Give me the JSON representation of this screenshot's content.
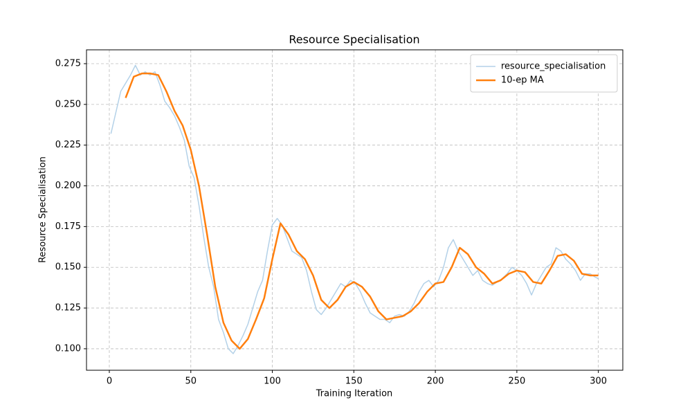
{
  "chart_data": {
    "type": "line",
    "title": "Resource Specialisation",
    "x_label": "Training Iteration",
    "y_label": "Resource Specialisation",
    "xlim": [
      -14,
      315
    ],
    "ylim": [
      0.0868,
      0.2835
    ],
    "xticks": [
      0,
      50,
      100,
      150,
      200,
      250,
      300
    ],
    "yticks": [
      {
        "value": 0.1,
        "label": "0.100"
      },
      {
        "value": 0.125,
        "label": "0.125"
      },
      {
        "value": 0.15,
        "label": "0.150"
      },
      {
        "value": 0.175,
        "label": "0.175"
      },
      {
        "value": 0.2,
        "label": "0.200"
      },
      {
        "value": 0.225,
        "label": "0.225"
      },
      {
        "value": 0.25,
        "label": "0.250"
      },
      {
        "value": 0.275,
        "label": "0.275"
      }
    ],
    "grid": true,
    "legend": "upper right",
    "series": [
      {
        "name": "resource_specialisation",
        "color": "#b3d1e8",
        "width": 1.5,
        "x": [
          1,
          4,
          7,
          10,
          13,
          16,
          19,
          22,
          25,
          28,
          31,
          34,
          37,
          40,
          43,
          46,
          49,
          52,
          55,
          58,
          61,
          64,
          67,
          70,
          73,
          76,
          79,
          82,
          85,
          88,
          91,
          94,
          97,
          100,
          103,
          106,
          109,
          112,
          115,
          118,
          121,
          124,
          127,
          130,
          133,
          136,
          139,
          142,
          145,
          148,
          151,
          154,
          157,
          160,
          163,
          166,
          169,
          172,
          175,
          178,
          181,
          184,
          187,
          190,
          193,
          196,
          199,
          202,
          205,
          208,
          211,
          214,
          217,
          220,
          223,
          226,
          229,
          232,
          235,
          238,
          241,
          244,
          247,
          250,
          253,
          256,
          259,
          262,
          265,
          268,
          271,
          274,
          277,
          280,
          283,
          286,
          289,
          292,
          295,
          298,
          300
        ],
        "values": [
          0.232,
          0.245,
          0.258,
          0.263,
          0.268,
          0.274,
          0.268,
          0.27,
          0.268,
          0.27,
          0.262,
          0.252,
          0.248,
          0.243,
          0.236,
          0.228,
          0.212,
          0.205,
          0.188,
          0.168,
          0.15,
          0.138,
          0.118,
          0.11,
          0.1,
          0.097,
          0.102,
          0.108,
          0.115,
          0.125,
          0.135,
          0.142,
          0.16,
          0.176,
          0.18,
          0.176,
          0.168,
          0.16,
          0.158,
          0.156,
          0.148,
          0.135,
          0.124,
          0.121,
          0.125,
          0.13,
          0.135,
          0.14,
          0.138,
          0.142,
          0.14,
          0.135,
          0.128,
          0.122,
          0.12,
          0.118,
          0.118,
          0.116,
          0.12,
          0.121,
          0.12,
          0.123,
          0.128,
          0.135,
          0.14,
          0.142,
          0.138,
          0.142,
          0.15,
          0.162,
          0.167,
          0.16,
          0.155,
          0.15,
          0.145,
          0.148,
          0.142,
          0.14,
          0.139,
          0.141,
          0.143,
          0.146,
          0.15,
          0.148,
          0.145,
          0.14,
          0.133,
          0.14,
          0.145,
          0.15,
          0.152,
          0.162,
          0.16,
          0.155,
          0.152,
          0.148,
          0.142,
          0.146,
          0.146,
          0.144,
          0.143
        ]
      },
      {
        "name": "10-ep MA",
        "color": "#ff7f0e",
        "width": 2.5,
        "x": [
          10,
          15,
          20,
          25,
          30,
          35,
          40,
          45,
          50,
          55,
          60,
          65,
          70,
          75,
          80,
          85,
          90,
          95,
          100,
          105,
          110,
          115,
          120,
          125,
          130,
          135,
          140,
          145,
          150,
          155,
          160,
          165,
          170,
          175,
          180,
          185,
          190,
          195,
          200,
          205,
          210,
          215,
          220,
          225,
          230,
          235,
          240,
          245,
          250,
          255,
          260,
          265,
          270,
          275,
          280,
          285,
          290,
          295,
          300
        ],
        "values": [
          0.254,
          0.267,
          0.269,
          0.269,
          0.268,
          0.258,
          0.246,
          0.237,
          0.222,
          0.2,
          0.17,
          0.138,
          0.116,
          0.105,
          0.1,
          0.106,
          0.118,
          0.131,
          0.155,
          0.177,
          0.17,
          0.16,
          0.155,
          0.145,
          0.13,
          0.125,
          0.13,
          0.138,
          0.141,
          0.138,
          0.132,
          0.123,
          0.118,
          0.119,
          0.12,
          0.123,
          0.128,
          0.135,
          0.14,
          0.141,
          0.15,
          0.162,
          0.158,
          0.15,
          0.146,
          0.14,
          0.142,
          0.146,
          0.148,
          0.147,
          0.141,
          0.14,
          0.148,
          0.157,
          0.158,
          0.154,
          0.146,
          0.145,
          0.145
        ]
      }
    ]
  }
}
